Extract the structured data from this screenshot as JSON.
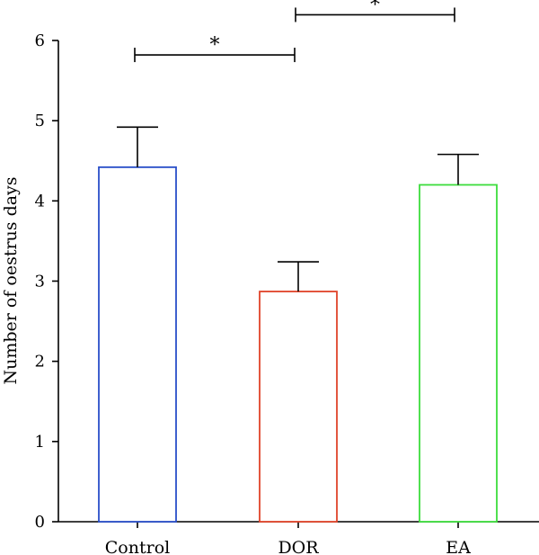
{
  "chart_data": {
    "type": "bar",
    "categories": [
      "Control",
      "DOR",
      "EA"
    ],
    "values": [
      4.42,
      2.87,
      4.2
    ],
    "errors": [
      0.5,
      0.37,
      0.38
    ],
    "colors": [
      "#2a4fc9",
      "#e0442a",
      "#3ddc3d"
    ],
    "ylabel": "Number of oestrus days",
    "ylim": [
      0,
      6
    ],
    "yticks": [
      0,
      1,
      2,
      3,
      4,
      5,
      6
    ],
    "significance": [
      {
        "from": 0,
        "to": 1,
        "label": "*",
        "y": 5.82
      },
      {
        "from": 1,
        "to": 2,
        "label": "*",
        "y": 6.32
      }
    ],
    "grid": false,
    "legend": "none"
  }
}
